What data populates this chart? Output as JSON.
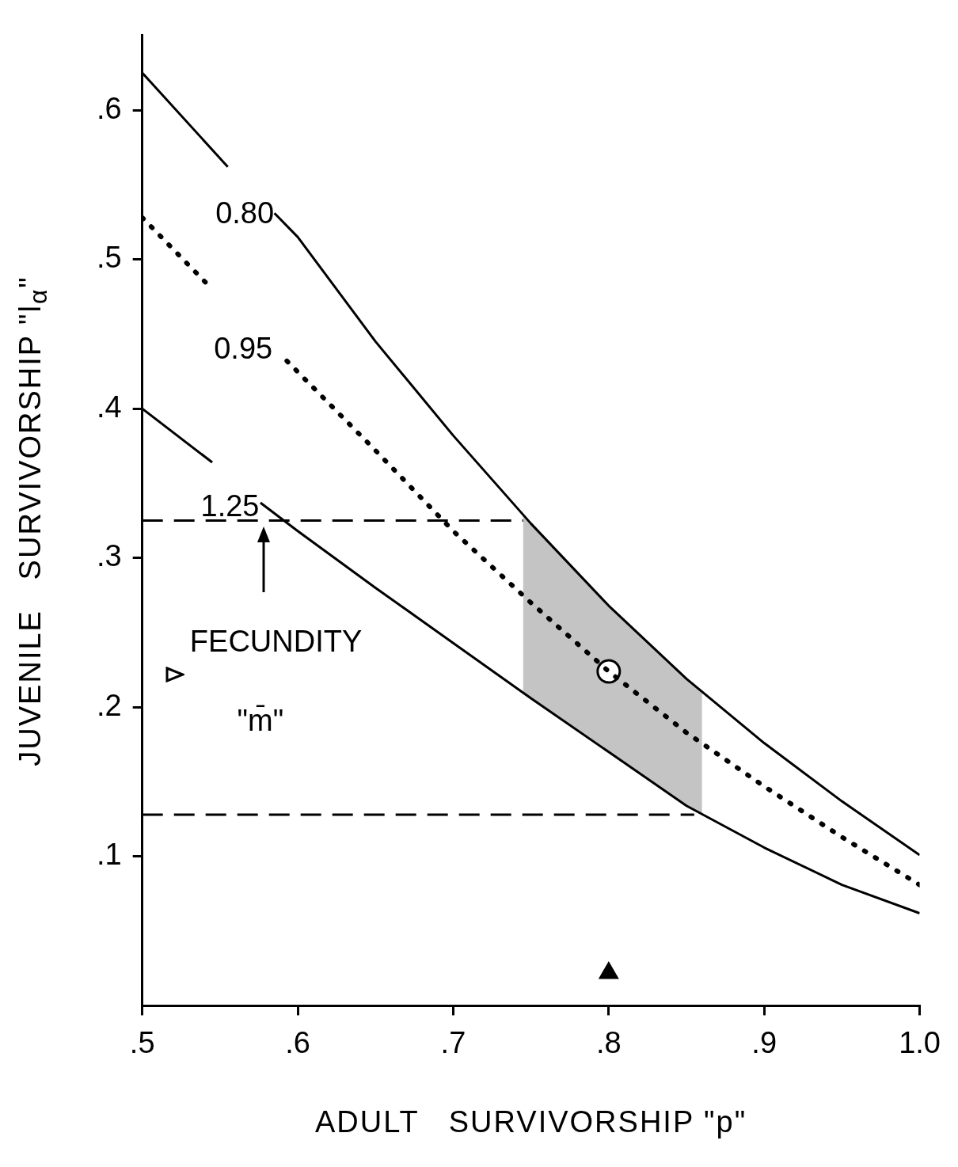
{
  "chart_data": {
    "type": "line",
    "xlabel": "ADULT   SURVIVORSHIP \"p\"",
    "ylabel": "JUVENILE   SURVIVORSHIP \"l$_{α}$\"",
    "xlim": [
      0.5,
      1.0
    ],
    "ylim": [
      0,
      0.65
    ],
    "xticks": [
      {
        "value": 0.5,
        "label": ".5"
      },
      {
        "value": 0.6,
        "label": ".6"
      },
      {
        "value": 0.7,
        "label": ".7"
      },
      {
        "value": 0.8,
        "label": ".8"
      },
      {
        "value": 0.9,
        "label": ".9"
      },
      {
        "value": 1.0,
        "label": "1.0"
      }
    ],
    "yticks": [
      {
        "value": 0.1,
        "label": ".1"
      },
      {
        "value": 0.2,
        "label": ".2"
      },
      {
        "value": 0.3,
        "label": ".3"
      },
      {
        "value": 0.4,
        "label": ".4"
      },
      {
        "value": 0.5,
        "label": ".5"
      },
      {
        "value": 0.6,
        "label": ".6"
      }
    ],
    "grid": false,
    "legend": false,
    "series": [
      {
        "type": "line",
        "name": "0.80",
        "color": "#000000",
        "line_style": "solid",
        "marker": "none",
        "x": [
          0.5,
          0.555,
          0.57,
          0.585,
          0.6,
          0.65,
          0.7,
          0.75,
          0.8,
          0.85,
          0.9,
          0.95,
          1.0
        ],
        "values": [
          0.625,
          0.562,
          null,
          0.531,
          0.515,
          0.445,
          0.382,
          0.323,
          0.268,
          0.219,
          0.176,
          0.137,
          0.101
        ]
      },
      {
        "type": "line",
        "name": "0.95",
        "color": "#000000",
        "line_style": "dotted",
        "marker": "none",
        "x": [
          0.5,
          0.545,
          0.57,
          0.593,
          0.65,
          0.7,
          0.75,
          0.8,
          0.85,
          0.9,
          0.95,
          1.0
        ],
        "values": [
          0.528,
          0.48,
          null,
          0.432,
          0.372,
          0.318,
          0.27,
          0.224,
          0.183,
          0.147,
          0.113,
          0.081
        ]
      },
      {
        "type": "line",
        "name": "1.25",
        "color": "#000000",
        "line_style": "solid",
        "marker": "none",
        "x": [
          0.5,
          0.545,
          0.56,
          0.576,
          0.6,
          0.65,
          0.7,
          0.75,
          0.8,
          0.85,
          0.9,
          0.95,
          1.0
        ],
        "values": [
          0.4,
          0.364,
          null,
          0.337,
          0.318,
          0.28,
          0.243,
          0.206,
          0.17,
          0.134,
          0.106,
          0.081,
          0.062
        ]
      },
      {
        "type": "line",
        "color": "#000000",
        "line_style": "dashed",
        "marker": "none",
        "x": [
          0.5,
          0.745
        ],
        "values": [
          0.325,
          0.325
        ]
      },
      {
        "type": "line",
        "color": "#000000",
        "line_style": "dashed",
        "marker": "none",
        "x": [
          0.5,
          0.855
        ],
        "values": [
          0.128,
          0.128
        ]
      },
      {
        "type": "scatter",
        "color": "#000000",
        "marker": "circle",
        "x": [
          0.8
        ],
        "values": [
          0.224
        ]
      },
      {
        "type": "scatter",
        "color": "#000000",
        "marker": "triangle",
        "x": [
          0.8
        ],
        "values": [
          0.022
        ]
      }
    ],
    "bands": [
      {
        "axis": "x",
        "from": 0.745,
        "to": 0.86,
        "color": "#c4c4c4"
      }
    ],
    "annotations": [
      "FECUNDITY",
      "\"m̄\""
    ]
  }
}
